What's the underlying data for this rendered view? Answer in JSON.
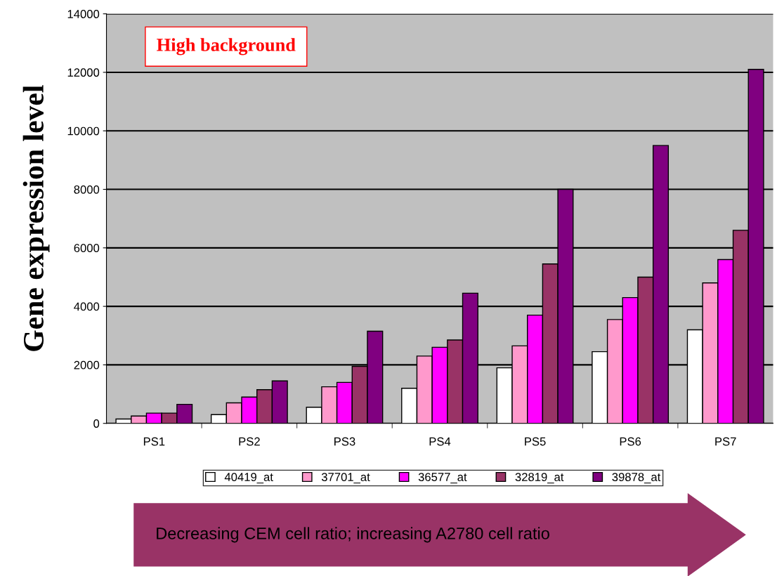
{
  "chart_data": {
    "type": "bar",
    "title": "High background",
    "ylabel": "Gene expression level",
    "categories": [
      "PS1",
      "PS2",
      "PS3",
      "PS4",
      "PS5",
      "PS6",
      "PS7"
    ],
    "series": [
      {
        "name": "40419_at",
        "color": "#ffffff",
        "values": [
          150,
          300,
          550,
          1200,
          1900,
          2450,
          3200
        ]
      },
      {
        "name": "37701_at",
        "color": "#ff99cc",
        "values": [
          250,
          700,
          1250,
          2300,
          2650,
          3550,
          4800
        ]
      },
      {
        "name": "36577_at",
        "color": "#ff00ff",
        "values": [
          350,
          900,
          1400,
          2600,
          3700,
          4300,
          5600
        ]
      },
      {
        "name": "32819_at",
        "color": "#993366",
        "values": [
          350,
          1150,
          1950,
          2850,
          5450,
          5000,
          6600
        ]
      },
      {
        "name": "39878_at",
        "color": "#800080",
        "values": [
          650,
          1450,
          3150,
          4450,
          8000,
          9500,
          12100
        ]
      }
    ],
    "ylim": [
      0,
      14000
    ],
    "yticks": [
      0,
      2000,
      4000,
      6000,
      8000,
      10000,
      12000,
      14000
    ],
    "grid": "y",
    "legend": "bottom",
    "annotations": [
      "Decreasing CEM cell ratio; increasing A2780 cell ratio"
    ]
  }
}
